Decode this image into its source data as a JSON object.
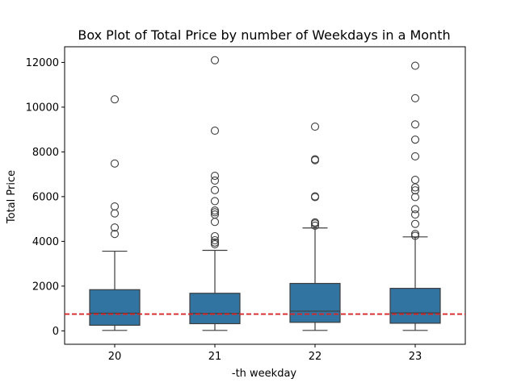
{
  "chart_data": {
    "type": "box",
    "title": "Box Plot of Total Price by number of Weekdays in a Month",
    "xlabel": "-th weekday",
    "ylabel": "Total Price",
    "categories": [
      "20",
      "21",
      "22",
      "23"
    ],
    "ylim": [
      -600,
      12700
    ],
    "yticks": [
      0,
      2000,
      4000,
      6000,
      8000,
      10000,
      12000
    ],
    "box_color": "#3274a1",
    "reference_line": {
      "value": 750,
      "color": "#d62728",
      "style": "dashed"
    },
    "boxes": [
      {
        "category": "20",
        "whisker_low": 20,
        "q1": 250,
        "median": 790,
        "q3": 1840,
        "whisker_high": 3560,
        "outliers": [
          4330,
          4620,
          5250,
          5560,
          7480,
          10350
        ]
      },
      {
        "category": "21",
        "whisker_low": 20,
        "q1": 320,
        "median": 780,
        "q3": 1680,
        "whisker_high": 3600,
        "outliers": [
          3870,
          3950,
          4050,
          4230,
          4870,
          5200,
          5300,
          5380,
          5800,
          6290,
          6720,
          6930,
          8950,
          12100
        ]
      },
      {
        "category": "22",
        "whisker_low": 20,
        "q1": 380,
        "median": 880,
        "q3": 2120,
        "whisker_high": 4600,
        "outliers": [
          4700,
          4800,
          4850,
          5980,
          6010,
          7630,
          7670,
          9130
        ]
      },
      {
        "category": "23",
        "whisker_low": 20,
        "q1": 340,
        "median": 800,
        "q3": 1900,
        "whisker_high": 4200,
        "outliers": [
          4250,
          4330,
          4780,
          5200,
          5440,
          5980,
          6280,
          6410,
          6750,
          7800,
          8550,
          9230,
          10400,
          11850
        ]
      }
    ]
  }
}
